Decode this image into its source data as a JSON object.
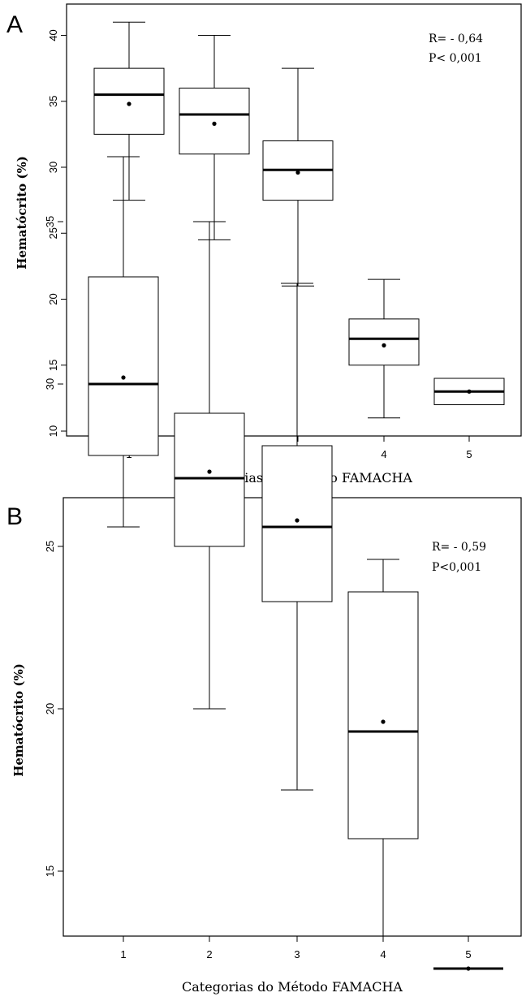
{
  "chart_data": [
    {
      "panel": "A",
      "type": "box",
      "xlabel": "Categorias do Método FAMACHA",
      "ylabel": "Hematócrito (%)",
      "ylim": [
        10,
        42
      ],
      "yticks": [
        "10",
        "15",
        "20",
        "25",
        "30",
        "35",
        "40"
      ],
      "categories": [
        "1",
        "2",
        "3",
        "4",
        "5"
      ],
      "boxes": [
        {
          "category": "1",
          "whisker_low": 27.5,
          "q1": 32.5,
          "median": 35.5,
          "q3": 37.5,
          "whisker_high": 41,
          "mean": 34.8
        },
        {
          "category": "2",
          "whisker_low": 24.5,
          "q1": 31,
          "median": 34,
          "q3": 36,
          "whisker_high": 40,
          "mean": 33.3
        },
        {
          "category": "3",
          "whisker_low": 21,
          "q1": 27.5,
          "median": 29.8,
          "q3": 32,
          "whisker_high": 37.5,
          "mean": 29.6
        },
        {
          "category": "4",
          "whisker_low": 11,
          "q1": 15,
          "median": 17,
          "q3": 18.5,
          "whisker_high": 21.5,
          "mean": 16.5
        },
        {
          "category": "5",
          "whisker_low": 12,
          "q1": 12,
          "median": 13,
          "q3": 14,
          "whisker_high": 14,
          "mean": 13
        }
      ],
      "annotations": [
        "R= - 0,64",
        "P< 0,001"
      ],
      "grid": false
    },
    {
      "panel": "B",
      "type": "box",
      "xlabel": "Categorias do Método FAMACHA",
      "ylabel": "Hematócrito (%)",
      "ylim": [
        11.5,
        37.2
      ],
      "yticks": [
        "15",
        "20",
        "25",
        "30",
        "35"
      ],
      "categories": [
        "1",
        "2",
        "3",
        "4",
        "5"
      ],
      "boxes": [
        {
          "category": "1",
          "whisker_low": 25.6,
          "q1": 27.8,
          "median": 30,
          "q3": 33.3,
          "whisker_high": 37,
          "mean": 30.2
        },
        {
          "category": "2",
          "whisker_low": 20,
          "q1": 25,
          "median": 27.1,
          "q3": 29.1,
          "whisker_high": 35,
          "mean": 27.3
        },
        {
          "category": "3",
          "whisker_low": 17.5,
          "q1": 23.3,
          "median": 25.6,
          "q3": 28.1,
          "whisker_high": 33.1,
          "mean": 25.8
        },
        {
          "category": "4",
          "whisker_low": 13,
          "q1": 16,
          "median": 19.3,
          "q3": 23.6,
          "whisker_high": 24.6,
          "mean": 19.6
        },
        {
          "category": "5",
          "whisker_low": 12,
          "q1": 12,
          "median": 12,
          "q3": 12,
          "whisker_high": 12,
          "mean": 12
        }
      ],
      "annotations": [
        "R= - 0,59",
        "P<0,001"
      ],
      "grid": false
    }
  ]
}
